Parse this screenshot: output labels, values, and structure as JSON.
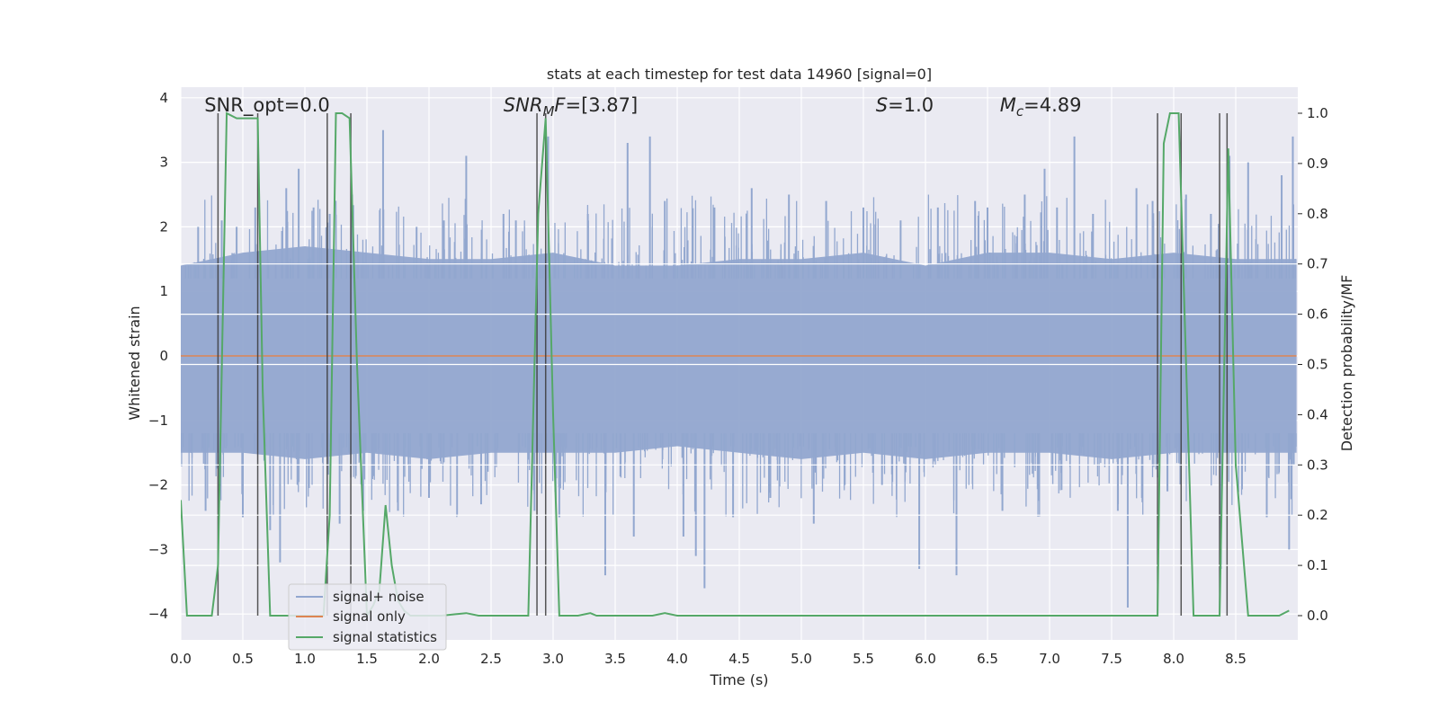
{
  "chart_data": {
    "type": "line",
    "title": "stats at each timestep for test data 14960 [signal=0]",
    "xlabel": "Time (s)",
    "ylabel": "Whitened strain",
    "y2label": "Detection probability/MF",
    "xlim": [
      0,
      8.99
    ],
    "ylim": [
      -4.4,
      4.15
    ],
    "y2lim": [
      -0.05,
      1.025
    ],
    "x_ticks": [
      "0.0",
      "0.5",
      "1.0",
      "1.5",
      "2.0",
      "2.5",
      "3.0",
      "3.5",
      "4.0",
      "4.5",
      "5.0",
      "5.5",
      "6.0",
      "6.5",
      "7.0",
      "7.5",
      "8.0",
      "8.5"
    ],
    "y_ticks": [
      "4",
      "3",
      "2",
      "1",
      "0",
      "−1",
      "−2",
      "−3",
      "−4"
    ],
    "y2_ticks": [
      "1.0",
      "0.9",
      "0.8",
      "0.7",
      "0.6",
      "0.5",
      "0.4",
      "0.3",
      "0.2",
      "0.1",
      "0.0"
    ],
    "annotations": [
      {
        "id": "snr-opt",
        "x": 0.19,
        "text": "SNR_opt=0.0"
      },
      {
        "id": "snr-mf",
        "x": 2.6,
        "pre": "SNR",
        "sub": "M",
        "it2": "F",
        "post": "=[3.87]"
      },
      {
        "id": "s-stat",
        "x": 5.6,
        "it": "S",
        "post": "=1.0"
      },
      {
        "id": "mc",
        "x": 6.6,
        "it": "M",
        "sub": "c",
        "post": "=4.89"
      }
    ],
    "legend": {
      "placement": "lower-left",
      "entries": [
        {
          "label": "signal+ noise",
          "color": "#92a7cf"
        },
        {
          "label": "signal only",
          "color": "#dd8452"
        },
        {
          "label": "signal statistics",
          "color": "#55a868"
        }
      ]
    },
    "right_grid_ticks": [
      0.7,
      0.6,
      0.5,
      0.3,
      0.2,
      0.1
    ],
    "vlines": [
      0.3,
      0.62,
      1.18,
      1.37,
      2.87,
      2.94,
      7.87,
      8.06,
      8.37,
      8.43
    ],
    "series": [
      {
        "name": "signal+ noise",
        "color": "#92a7cf",
        "envelope": {
          "x": [
            0,
            0.5,
            1.0,
            1.5,
            2.0,
            2.5,
            3.0,
            3.5,
            4.0,
            4.5,
            5.0,
            5.5,
            6.0,
            6.5,
            7.0,
            7.5,
            8.0,
            8.5,
            8.99
          ],
          "upper": [
            1.4,
            1.6,
            1.7,
            1.6,
            1.5,
            1.5,
            1.6,
            1.4,
            1.4,
            1.5,
            1.5,
            1.6,
            1.4,
            1.6,
            1.6,
            1.5,
            1.6,
            1.5,
            1.5
          ],
          "lower": [
            -1.5,
            -1.5,
            -1.6,
            -1.5,
            -1.6,
            -1.5,
            -1.5,
            -1.5,
            -1.4,
            -1.5,
            -1.6,
            -1.5,
            -1.6,
            -1.5,
            -1.5,
            -1.6,
            -1.5,
            -1.5,
            -1.5
          ]
        },
        "peaks": [
          {
            "x": 0.14,
            "y": 2.0
          },
          {
            "x": 0.2,
            "y": -2.4
          },
          {
            "x": 0.33,
            "y": 2.1
          },
          {
            "x": 0.45,
            "y": 2.0
          },
          {
            "x": 0.5,
            "y": -2.5
          },
          {
            "x": 0.6,
            "y": 2.3
          },
          {
            "x": 0.72,
            "y": -2.7
          },
          {
            "x": 0.8,
            "y": -3.2
          },
          {
            "x": 0.85,
            "y": 2.6
          },
          {
            "x": 0.95,
            "y": 2.9
          },
          {
            "x": 1.07,
            "y": 2.3
          },
          {
            "x": 1.2,
            "y": 2.2
          },
          {
            "x": 1.28,
            "y": -2.6
          },
          {
            "x": 1.38,
            "y": 2.5
          },
          {
            "x": 1.47,
            "y": -2.4
          },
          {
            "x": 1.63,
            "y": 3.5
          },
          {
            "x": 1.75,
            "y": -2.4
          },
          {
            "x": 1.9,
            "y": 2.0
          },
          {
            "x": 2.0,
            "y": -2.2
          },
          {
            "x": 2.12,
            "y": 2.1
          },
          {
            "x": 2.3,
            "y": 3.1
          },
          {
            "x": 2.42,
            "y": -2.3
          },
          {
            "x": 2.6,
            "y": 2.2
          },
          {
            "x": 2.7,
            "y": 2.1
          },
          {
            "x": 2.85,
            "y": -2.4
          },
          {
            "x": 2.96,
            "y": 3.4
          },
          {
            "x": 3.05,
            "y": -2.5
          },
          {
            "x": 3.28,
            "y": 2.2
          },
          {
            "x": 3.42,
            "y": -3.4
          },
          {
            "x": 3.6,
            "y": 3.3
          },
          {
            "x": 3.65,
            "y": -2.8
          },
          {
            "x": 3.78,
            "y": 3.4
          },
          {
            "x": 3.9,
            "y": 2.4
          },
          {
            "x": 4.05,
            "y": -2.8
          },
          {
            "x": 4.15,
            "y": -3.1
          },
          {
            "x": 4.22,
            "y": -3.6
          },
          {
            "x": 4.3,
            "y": 2.3
          },
          {
            "x": 4.45,
            "y": -2.5
          },
          {
            "x": 4.6,
            "y": 2.6
          },
          {
            "x": 4.75,
            "y": -2.2
          },
          {
            "x": 4.9,
            "y": 2.5
          },
          {
            "x": 5.1,
            "y": -2.6
          },
          {
            "x": 5.2,
            "y": 2.4
          },
          {
            "x": 5.35,
            "y": -2.0
          },
          {
            "x": 5.5,
            "y": 2.3
          },
          {
            "x": 5.65,
            "y": -2.0
          },
          {
            "x": 5.8,
            "y": 2.1
          },
          {
            "x": 5.95,
            "y": -3.3
          },
          {
            "x": 6.1,
            "y": 2.3
          },
          {
            "x": 6.25,
            "y": -3.4
          },
          {
            "x": 6.4,
            "y": 2.4
          },
          {
            "x": 6.5,
            "y": 2.3
          },
          {
            "x": 6.62,
            "y": -2.4
          },
          {
            "x": 6.8,
            "y": 2.5
          },
          {
            "x": 6.96,
            "y": 2.9
          },
          {
            "x": 7.06,
            "y": 2.3
          },
          {
            "x": 7.2,
            "y": 3.4
          },
          {
            "x": 7.35,
            "y": 2.2
          },
          {
            "x": 7.55,
            "y": -2.4
          },
          {
            "x": 7.63,
            "y": -3.9
          },
          {
            "x": 7.7,
            "y": 2.6
          },
          {
            "x": 7.83,
            "y": 2.4
          },
          {
            "x": 7.95,
            "y": -2.1
          },
          {
            "x": 8.1,
            "y": 2.5
          },
          {
            "x": 8.3,
            "y": 2.2
          },
          {
            "x": 8.38,
            "y": -3.3
          },
          {
            "x": 8.45,
            "y": 3.1
          },
          {
            "x": 8.6,
            "y": 3.0
          },
          {
            "x": 8.75,
            "y": -2.5
          },
          {
            "x": 8.87,
            "y": 2.8
          },
          {
            "x": 8.93,
            "y": -3.0
          },
          {
            "x": 8.96,
            "y": 3.4
          }
        ]
      },
      {
        "name": "signal only",
        "color": "#dd8452",
        "x": [
          0,
          8.99
        ],
        "y": [
          0,
          0
        ]
      },
      {
        "name": "signal statistics",
        "color": "#55a868",
        "axis": "right",
        "x": [
          0,
          0.05,
          0.12,
          0.18,
          0.25,
          0.3,
          0.37,
          0.45,
          0.52,
          0.58,
          0.62,
          0.66,
          0.72,
          0.78,
          0.9,
          1.05,
          1.15,
          1.2,
          1.25,
          1.3,
          1.36,
          1.42,
          1.5,
          1.55,
          1.6,
          1.65,
          1.7,
          1.75,
          1.8,
          1.85,
          1.95,
          2.1,
          2.3,
          2.4,
          2.5,
          2.6,
          2.7,
          2.8,
          2.88,
          2.94,
          3.0,
          3.05,
          3.1,
          3.2,
          3.3,
          3.35,
          3.4,
          3.6,
          3.8,
          3.9,
          4.0,
          4.1,
          4.5,
          5.0,
          5.5,
          6.0,
          6.5,
          7.0,
          7.5,
          7.87,
          7.92,
          7.97,
          8.04,
          8.1,
          8.16,
          8.25,
          8.37,
          8.44,
          8.5,
          8.6,
          8.7,
          8.85,
          8.93
        ],
        "y": [
          0.23,
          0.0,
          0.0,
          0.0,
          0.0,
          0.1,
          1.0,
          0.99,
          0.99,
          0.99,
          0.99,
          0.45,
          0.0,
          0.0,
          0.0,
          0.0,
          0.0,
          0.2,
          1.0,
          1.0,
          0.99,
          0.5,
          0.0,
          0.02,
          0.05,
          0.22,
          0.1,
          0.03,
          0.01,
          0.0,
          0.0,
          0.0,
          0.005,
          0.0,
          0.0,
          0.0,
          0.0,
          0.0,
          0.8,
          0.99,
          0.4,
          0.0,
          0.0,
          0.0,
          0.005,
          0.0,
          0.0,
          0.0,
          0.0,
          0.005,
          0.0,
          0.0,
          0.0,
          0.0,
          0.0,
          0.0,
          0.0,
          0.0,
          0.0,
          0.0,
          0.94,
          1.0,
          1.0,
          0.5,
          0.0,
          0.0,
          0.0,
          0.93,
          0.3,
          0.0,
          0.0,
          0.0,
          0.01
        ]
      }
    ]
  }
}
